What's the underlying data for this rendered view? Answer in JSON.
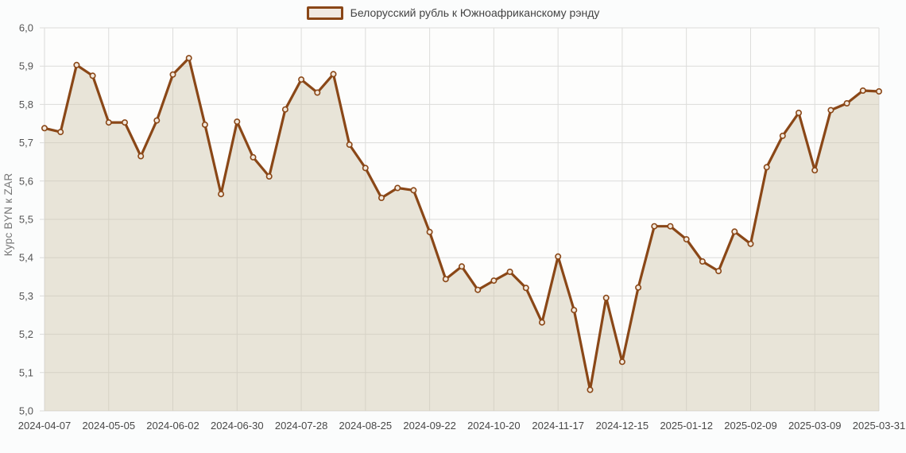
{
  "chart_data": {
    "type": "area",
    "title": "",
    "legend": "Белорусский рубль к Южноафриканскому рэнду",
    "ylabel": "Курс BYN к ZAR",
    "ylim": [
      5.0,
      6.0
    ],
    "ytick_step": 0.1,
    "ytick_labels": [
      "6,0",
      "5,9",
      "5,8",
      "5,7",
      "5,6",
      "5,5",
      "5,4",
      "5,3",
      "5,2",
      "5,1",
      "5,0"
    ],
    "grid": true,
    "legend_position": "top-center",
    "x": [
      "2024-04-07",
      "2024-04-14",
      "2024-04-21",
      "2024-04-28",
      "2024-05-05",
      "2024-05-12",
      "2024-05-19",
      "2024-05-26",
      "2024-06-02",
      "2024-06-09",
      "2024-06-16",
      "2024-06-23",
      "2024-06-30",
      "2024-07-07",
      "2024-07-14",
      "2024-07-21",
      "2024-07-28",
      "2024-08-04",
      "2024-08-11",
      "2024-08-18",
      "2024-08-25",
      "2024-09-01",
      "2024-09-08",
      "2024-09-15",
      "2024-09-22",
      "2024-09-29",
      "2024-10-06",
      "2024-10-13",
      "2024-10-20",
      "2024-10-27",
      "2024-11-03",
      "2024-11-10",
      "2024-11-17",
      "2024-11-24",
      "2024-12-01",
      "2024-12-08",
      "2024-12-15",
      "2024-12-22",
      "2024-12-29",
      "2025-01-05",
      "2025-01-12",
      "2025-01-19",
      "2025-01-26",
      "2025-02-02",
      "2025-02-09",
      "2025-02-16",
      "2025-02-23",
      "2025-03-02",
      "2025-03-09",
      "2025-03-16",
      "2025-03-23",
      "2025-03-30",
      "2025-03-31"
    ],
    "values": [
      5.738,
      5.728,
      5.903,
      5.875,
      5.753,
      5.753,
      5.665,
      5.758,
      5.878,
      5.921,
      5.747,
      5.566,
      5.755,
      5.662,
      5.612,
      5.787,
      5.865,
      5.831,
      5.879,
      5.695,
      5.634,
      5.556,
      5.582,
      5.576,
      5.467,
      5.344,
      5.377,
      5.316,
      5.34,
      5.363,
      5.321,
      5.231,
      5.403,
      5.263,
      5.055,
      5.295,
      5.128,
      5.322,
      5.482,
      5.482,
      5.448,
      5.39,
      5.365,
      5.468,
      5.436,
      5.636,
      5.718,
      5.778,
      5.628,
      5.785,
      5.803,
      5.836,
      5.834
    ],
    "xtick_indices": [
      0,
      4,
      8,
      12,
      16,
      20,
      24,
      28,
      32,
      36,
      40,
      44,
      48,
      52
    ],
    "colors": {
      "line": "#8a4717",
      "area_fill": "rgba(206,197,172,0.45)",
      "marker_fill": "#f2e9de",
      "gridline": "#dcdcda",
      "plot_bg": "#fdfdfc",
      "ytick_text": "#555555",
      "xtick_text": "#484848"
    }
  }
}
